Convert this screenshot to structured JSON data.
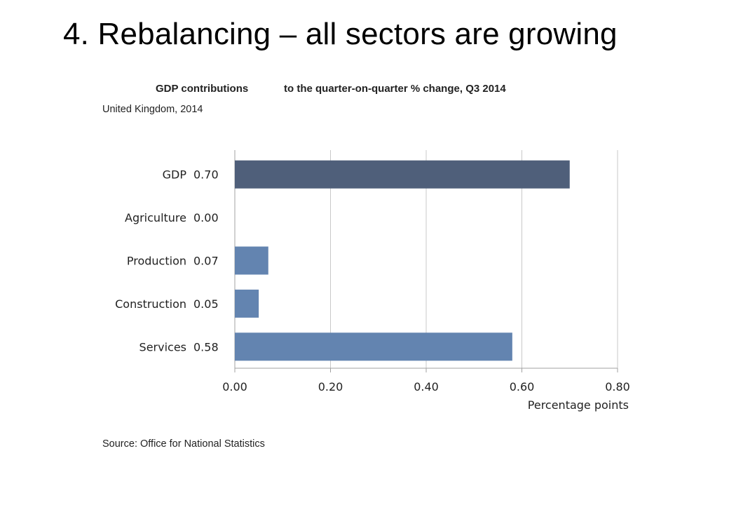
{
  "slide": {
    "title": "4. Rebalancing – all sectors are growing"
  },
  "chart_data": {
    "type": "bar",
    "orientation": "horizontal",
    "title_part1": "GDP contributions",
    "title_part2": "to the quarter-on-quarter % change, Q3 2014",
    "subtitle": "United Kingdom, 2014",
    "source": "Source: Office for National Statistics",
    "xlabel": "Percentage points",
    "ylabel": "",
    "categories": [
      "GDP",
      "Agriculture",
      "Production",
      "Construction",
      "Services"
    ],
    "values": [
      0.7,
      0.0,
      0.07,
      0.05,
      0.58
    ],
    "value_labels": [
      "0.70",
      "0.00",
      "0.07",
      "0.05",
      "0.58"
    ],
    "xlim": [
      0,
      0.8
    ],
    "xticks": [
      0.0,
      0.2,
      0.4,
      0.6,
      0.8
    ],
    "xtick_labels": [
      "0.00",
      "0.20",
      "0.40",
      "0.60",
      "0.80"
    ],
    "grid": true,
    "colors": {
      "total": "#4f5f7a",
      "sector": "#6384b0",
      "grid": "#c8c8c8"
    }
  }
}
